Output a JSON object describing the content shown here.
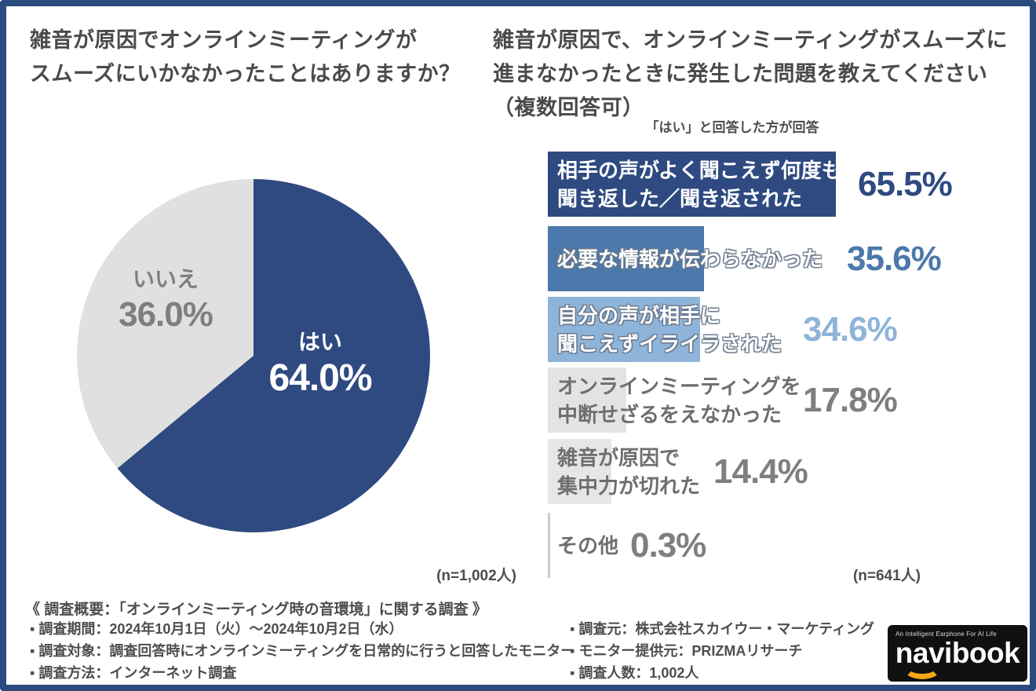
{
  "page": {
    "border_color": "#2b4a7e",
    "background": "#ffffff"
  },
  "header": {
    "left_title_line1": "雑音が原因でオンラインミーティングが",
    "left_title_line2": "スムーズにいかなかったことはありますか？",
    "right_title_line1": "雑音が原因で、オンラインミーティングがスムーズに",
    "right_title_line2": "進まなかったときに発生した問題を教えてください",
    "right_title_line3": "（複数回答可）",
    "right_subtitle": "「はい」と回答した方が回答"
  },
  "pie_chart": {
    "n_note": "(n=1,002人)",
    "slices": [
      {
        "label": "はい",
        "pct": "64.0%",
        "value": 64.0,
        "color": "#2e4a80",
        "text_color": "#ffffff"
      },
      {
        "label": "いいえ",
        "pct": "36.0%",
        "value": 36.0,
        "color": "#e0e0e0",
        "text_color": "#7f7f7f"
      }
    ]
  },
  "bar_chart": {
    "n_note": "(n=641人)",
    "bars": [
      {
        "label_lines": [
          "相手の声がよく聞こえず何度も",
          "聞き返した／聞き返された"
        ],
        "pct": "65.5%",
        "value": 65.5,
        "bar_color": "#2e4a80",
        "pct_color": "#2e4a80",
        "label_color": "#ffffff"
      },
      {
        "label_lines": [
          "必要な情報が伝わらなかった"
        ],
        "pct": "35.6%",
        "value": 35.6,
        "bar_color": "#4c78ab",
        "pct_color": "#4c78ab",
        "label_color": "#ffffff"
      },
      {
        "label_lines": [
          "自分の声が相手に",
          "聞こえずイライラされた"
        ],
        "pct": "34.6%",
        "value": 34.6,
        "bar_color": "#8fb4d9",
        "pct_color": "#8fb4d9",
        "label_color": "#ffffff"
      },
      {
        "label_lines": [
          "オンラインミーティングを",
          "中断せざるをえなかった"
        ],
        "pct": "17.8%",
        "value": 17.8,
        "bar_color": "#e3e3e3",
        "pct_color": "#7f7f7f",
        "label_color": "#6e6e6e"
      },
      {
        "label_lines": [
          "雑音が原因で",
          "集中力が切れた"
        ],
        "pct": "14.4%",
        "value": 14.4,
        "bar_color": "#e6e6e6",
        "pct_color": "#7f7f7f",
        "label_color": "#6e6e6e"
      },
      {
        "label_lines": [
          "その他"
        ],
        "pct": "0.3%",
        "value": 0.3,
        "bar_color": "#cccccc",
        "pct_color": "#7f7f7f",
        "label_color": "#6e6e6e"
      }
    ]
  },
  "footer": {
    "overview": "《 調査概要：「オンラインミーティング時の音環境」に関する調査 》",
    "left_items": [
      "▪ 調査期間：2024年10月1日（火）～2024年10月2日（水）",
      "▪ 調査対象：調査回答時にオンラインミーティングを日常的に行うと回答したモニター",
      "▪ 調査方法：インターネット調査"
    ],
    "right_items": [
      "▪ 調査元：株式会社スカイウー・マーケティング",
      "▪ モニター提供元：PRIZMAリサーチ",
      "▪ 調査人数：1,002人"
    ],
    "logo": {
      "tagline": "An Intelligent Earphone For AI Life",
      "name": "navibook",
      "smile_color": "#f5a71b"
    }
  },
  "chart_data": [
    {
      "type": "pie",
      "title": "雑音が原因でオンラインミーティングがスムーズにいかなかったことはありますか？",
      "labels": [
        "はい",
        "いいえ"
      ],
      "values": [
        64.0,
        36.0
      ],
      "value_labels": [
        "64.0%",
        "36.0%"
      ],
      "colors": [
        "#2e4a80",
        "#e0e0e0"
      ],
      "start": "12 o'clock, clockwise",
      "n_label": "(n=1,002人)"
    },
    {
      "type": "bar",
      "orientation": "horizontal",
      "title": "雑音が原因で、オンラインミーティングがスムーズに進まなかったときに発生した問題を教えてください（複数回答可）",
      "subtitle": "「はい」と回答した方が回答",
      "categories": [
        "相手の声がよく聞こえず何度も聞き返した／聞き返された",
        "必要な情報が伝わらなかった",
        "自分の声が相手に聞こえずイライラされた",
        "オンラインミーティングを中断せざるをえなかった",
        "雑音が原因で集中力が切れた",
        "その他"
      ],
      "values": [
        65.5,
        35.6,
        34.6,
        17.8,
        14.4,
        0.3
      ],
      "value_labels": [
        "65.5%",
        "35.6%",
        "34.6%",
        "17.8%",
        "14.4%",
        "0.3%"
      ],
      "bar_colors": [
        "#2e4a80",
        "#4c78ab",
        "#8fb4d9",
        "#e3e3e3",
        "#e6e6e6",
        "#cccccc"
      ],
      "xlim": [
        0,
        100
      ],
      "grid": false,
      "legend": "none",
      "n_label": "(n=641人)"
    }
  ]
}
